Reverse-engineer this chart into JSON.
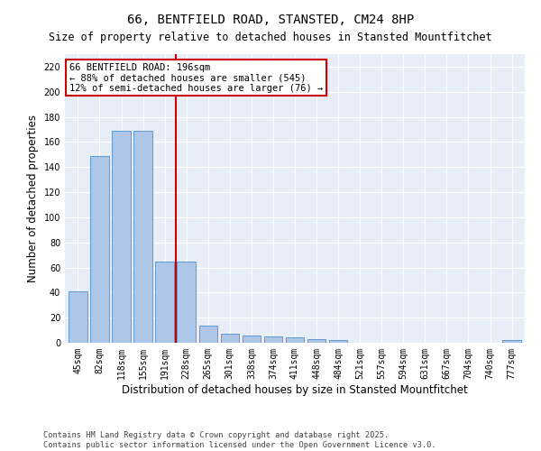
{
  "title": "66, BENTFIELD ROAD, STANSTED, CM24 8HP",
  "subtitle": "Size of property relative to detached houses in Stansted Mountfitchet",
  "xlabel": "Distribution of detached houses by size in Stansted Mountfitchet",
  "ylabel": "Number of detached properties",
  "categories": [
    "45sqm",
    "82sqm",
    "118sqm",
    "155sqm",
    "191sqm",
    "228sqm",
    "265sqm",
    "301sqm",
    "338sqm",
    "374sqm",
    "411sqm",
    "448sqm",
    "484sqm",
    "521sqm",
    "557sqm",
    "594sqm",
    "631sqm",
    "667sqm",
    "704sqm",
    "740sqm",
    "777sqm"
  ],
  "values": [
    41,
    149,
    169,
    169,
    65,
    65,
    14,
    7,
    6,
    5,
    4,
    3,
    2,
    0,
    0,
    0,
    0,
    0,
    0,
    0,
    2
  ],
  "bar_color": "#aec6e8",
  "bar_edge_color": "#5b9bd5",
  "vline_color": "#cc0000",
  "vline_pos": 4.5,
  "annotation_text": "66 BENTFIELD ROAD: 196sqm\n← 88% of detached houses are smaller (545)\n12% of semi-detached houses are larger (76) →",
  "box_color": "#cc0000",
  "ylim": [
    0,
    230
  ],
  "yticks": [
    0,
    20,
    40,
    60,
    80,
    100,
    120,
    140,
    160,
    180,
    200,
    220
  ],
  "footer_line1": "Contains HM Land Registry data © Crown copyright and database right 2025.",
  "footer_line2": "Contains public sector information licensed under the Open Government Licence v3.0.",
  "bg_color": "#e8eef7",
  "title_fontsize": 10,
  "tick_fontsize": 7,
  "label_fontsize": 8.5,
  "ann_fontsize": 7.5
}
